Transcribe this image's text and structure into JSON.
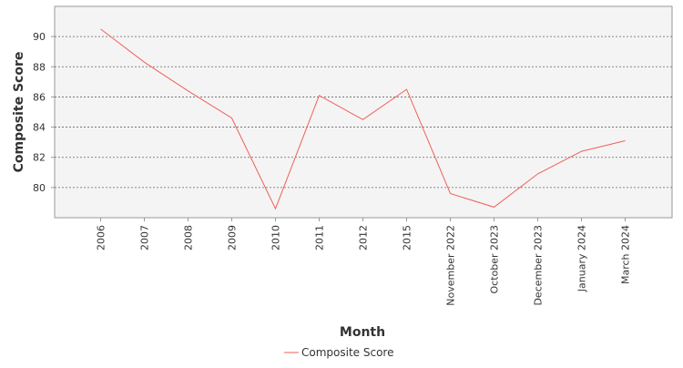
{
  "chart_data": {
    "type": "line",
    "title": "",
    "xlabel": "Month",
    "ylabel": "Composite Score",
    "categories": [
      "2006",
      "2007",
      "2008",
      "2009",
      "2010",
      "2011",
      "2012",
      "2015",
      "November 2022",
      "October 2023",
      "December 2023",
      "January 2024",
      "March 2024"
    ],
    "series": [
      {
        "name": "Composite Score",
        "values": [
          90.5,
          88.3,
          86.4,
          84.6,
          78.6,
          86.1,
          84.5,
          86.5,
          79.6,
          78.7,
          80.9,
          82.4,
          83.1
        ]
      }
    ],
    "ylim": [
      78.0,
      92.0
    ],
    "yticks": [
      80,
      82,
      84,
      86,
      88,
      90
    ],
    "grid": true,
    "legend": "bottom",
    "colors": {
      "series": "#f0605a",
      "plot_background": "#f4f4f4",
      "gridline": "#666666",
      "axis": "#999999"
    }
  }
}
